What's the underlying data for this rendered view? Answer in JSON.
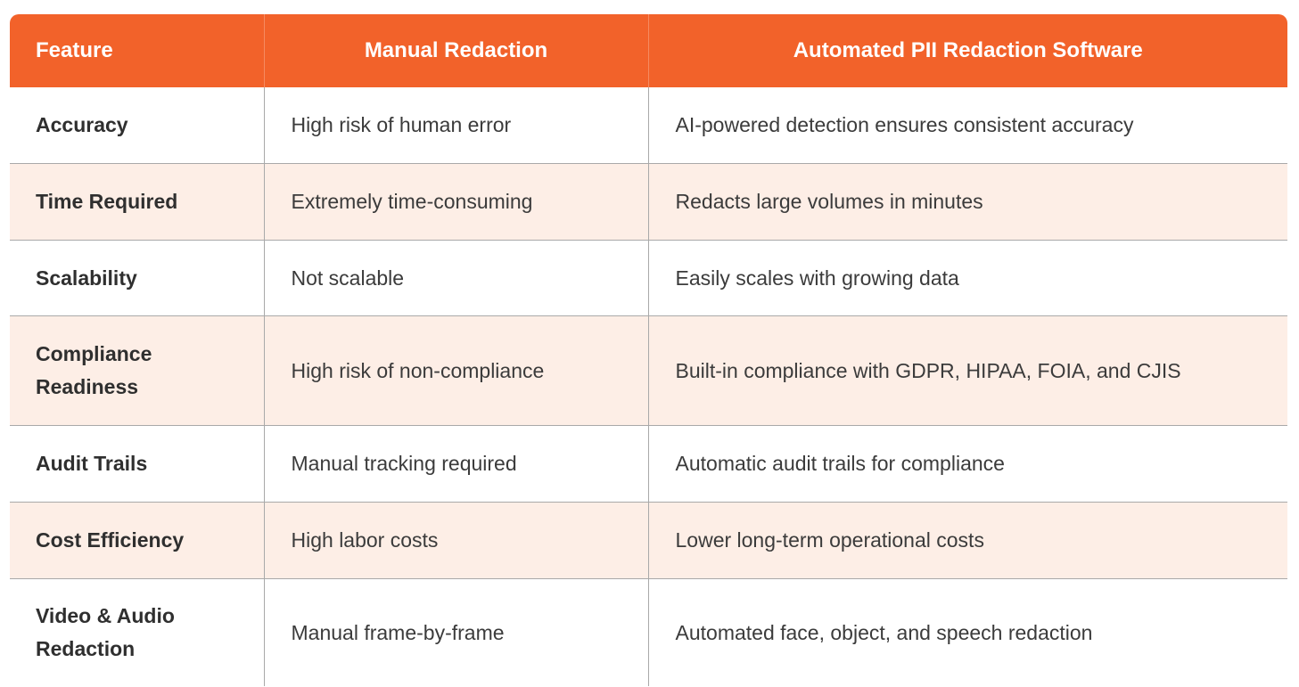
{
  "table": {
    "headers": [
      "Feature",
      "Manual Redaction",
      "Automated PII Redaction Software"
    ],
    "rows": [
      [
        "Accuracy",
        "High risk of human error",
        "AI-powered detection ensures consistent accuracy"
      ],
      [
        "Time Required",
        "Extremely time-consuming",
        "Redacts large volumes in minutes"
      ],
      [
        "Scalability",
        "Not scalable",
        "Easily scales with growing data"
      ],
      [
        "Compliance Readiness",
        "High risk of non-compliance",
        "Built-in compliance with GDPR, HIPAA, FOIA, and CJIS"
      ],
      [
        "Audit Trails",
        "Manual tracking required",
        "Automatic audit trails for compliance"
      ],
      [
        "Cost Efficiency",
        "High labor costs",
        "Lower long-term operational costs"
      ],
      [
        "Video & Audio Redaction",
        "Manual frame-by-frame",
        "Automated face, object, and speech redaction"
      ]
    ]
  },
  "colors": {
    "header_bg": "#f2622a",
    "header_text": "#ffffff",
    "alt_row_bg": "#fdeee6",
    "border": "#a9a9a9"
  }
}
